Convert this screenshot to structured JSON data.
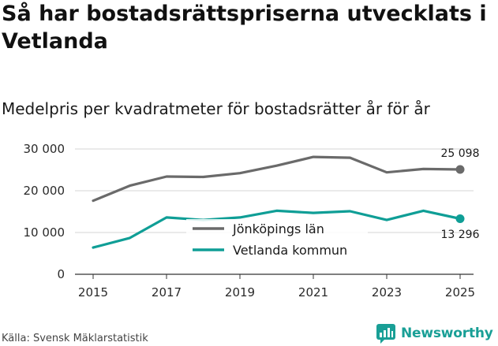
{
  "header": {
    "title": "Så har bostadsrättspriserna utvecklats i Vetlanda",
    "subtitle": "Medelpris per kvadratmeter för bostadsrätter år för år"
  },
  "footer": {
    "source": "Källa: Svensk Mäklarstatistik",
    "brand": "Newsworthy"
  },
  "colors": {
    "jonkoping": "#6a6a6a",
    "vetlanda": "#0f9e96",
    "grid": "#d6d6d6",
    "brand": "#199f96"
  },
  "chart_data": {
    "type": "line",
    "title": "Medelpris per kvadratmeter för bostadsrätter år för år",
    "xlabel": "",
    "ylabel": "",
    "x": [
      2015,
      2016,
      2017,
      2018,
      2019,
      2020,
      2021,
      2022,
      2023,
      2024,
      2025
    ],
    "xticks": [
      2015,
      2017,
      2019,
      2021,
      2023,
      2025
    ],
    "xtick_labels": [
      "2015",
      "2017",
      "2019",
      "2021",
      "2023",
      "2025"
    ],
    "ylim": [
      0,
      30000
    ],
    "yticks": [
      0,
      10000,
      20000,
      30000
    ],
    "ytick_labels": [
      "0",
      "10 000",
      "20 000",
      "30 000"
    ],
    "legend_position": "center",
    "series": [
      {
        "name": "Jönköpings län",
        "values": [
          17600,
          21200,
          23400,
          23300,
          24200,
          26000,
          28100,
          27900,
          24400,
          25200,
          25098
        ],
        "end_label": "25 098"
      },
      {
        "name": "Vetlanda kommun",
        "values": [
          6400,
          8700,
          13600,
          13000,
          13600,
          15200,
          14700,
          15100,
          13000,
          15200,
          13296
        ],
        "end_label": "13 296"
      }
    ]
  }
}
